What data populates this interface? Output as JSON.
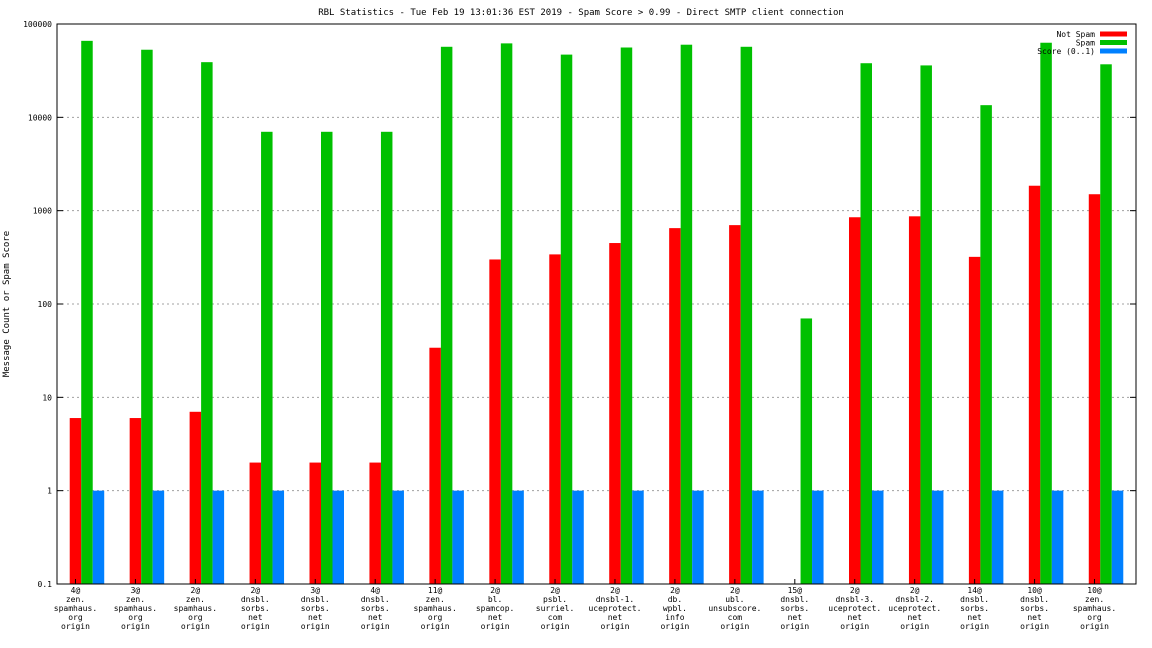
{
  "chart_data": {
    "type": "bar",
    "title": "RBL Statistics - Tue Feb 19 13:01:36 EST 2019 - Spam Score > 0.99 - Direct SMTP client connection",
    "ylabel": "Message Count or Spam Score",
    "xlabel": "",
    "y_scale": "log",
    "ylim": [
      0.1,
      100000
    ],
    "y_ticks": [
      "0.1",
      "1",
      "10",
      "100",
      "1000",
      "10000",
      "100000"
    ],
    "grid": true,
    "legend_position": "top-right",
    "categories": [
      [
        "4@",
        "zen.",
        "spamhaus.",
        "org",
        "origin"
      ],
      [
        "3@",
        "zen.",
        "spamhaus.",
        "org",
        "origin"
      ],
      [
        "2@",
        "zen.",
        "spamhaus.",
        "org",
        "origin"
      ],
      [
        "2@",
        "dnsbl.",
        "sorbs.",
        "net",
        "origin"
      ],
      [
        "3@",
        "dnsbl.",
        "sorbs.",
        "net",
        "origin"
      ],
      [
        "4@",
        "dnsbl.",
        "sorbs.",
        "net",
        "origin"
      ],
      [
        "11@",
        "zen.",
        "spamhaus.",
        "org",
        "origin"
      ],
      [
        "2@",
        "bl.",
        "spamcop.",
        "net",
        "origin"
      ],
      [
        "2@",
        "psbl.",
        "surriel.",
        "com",
        "origin"
      ],
      [
        "2@",
        "dnsbl-1.",
        "uceprotect.",
        "net",
        "origin"
      ],
      [
        "2@",
        "db.",
        "wpbl.",
        "info",
        "origin"
      ],
      [
        "2@",
        "ubl.",
        "unsubscore.",
        "com",
        "origin"
      ],
      [
        "15@",
        "dnsbl.",
        "sorbs.",
        "net",
        "origin"
      ],
      [
        "2@",
        "dnsbl-3.",
        "uceprotect.",
        "net",
        "origin"
      ],
      [
        "2@",
        "dnsbl-2.",
        "uceprotect.",
        "net",
        "origin"
      ],
      [
        "14@",
        "dnsbl.",
        "sorbs.",
        "net",
        "origin"
      ],
      [
        "10@",
        "dnsbl.",
        "sorbs.",
        "net",
        "origin"
      ],
      [
        "10@",
        "zen.",
        "spamhaus.",
        "org",
        "origin"
      ]
    ],
    "series": [
      {
        "name": "Not Spam",
        "color": "#ff0000",
        "values": [
          6,
          6,
          7,
          2,
          2,
          2,
          34,
          300,
          340,
          450,
          650,
          700,
          null,
          850,
          870,
          320,
          1850,
          1500
        ]
      },
      {
        "name": "Spam",
        "color": "#00c000",
        "values": [
          66000,
          53000,
          39000,
          7000,
          7000,
          7000,
          57000,
          62000,
          47000,
          56000,
          60000,
          57000,
          70,
          38000,
          36000,
          13500,
          63000,
          37000
        ]
      },
      {
        "name": "Score (0..1)",
        "color": "#0080ff",
        "values": [
          1,
          1,
          1,
          1,
          1,
          1,
          1,
          1,
          1,
          1,
          1,
          1,
          1,
          1,
          1,
          1,
          1,
          1
        ]
      }
    ]
  }
}
